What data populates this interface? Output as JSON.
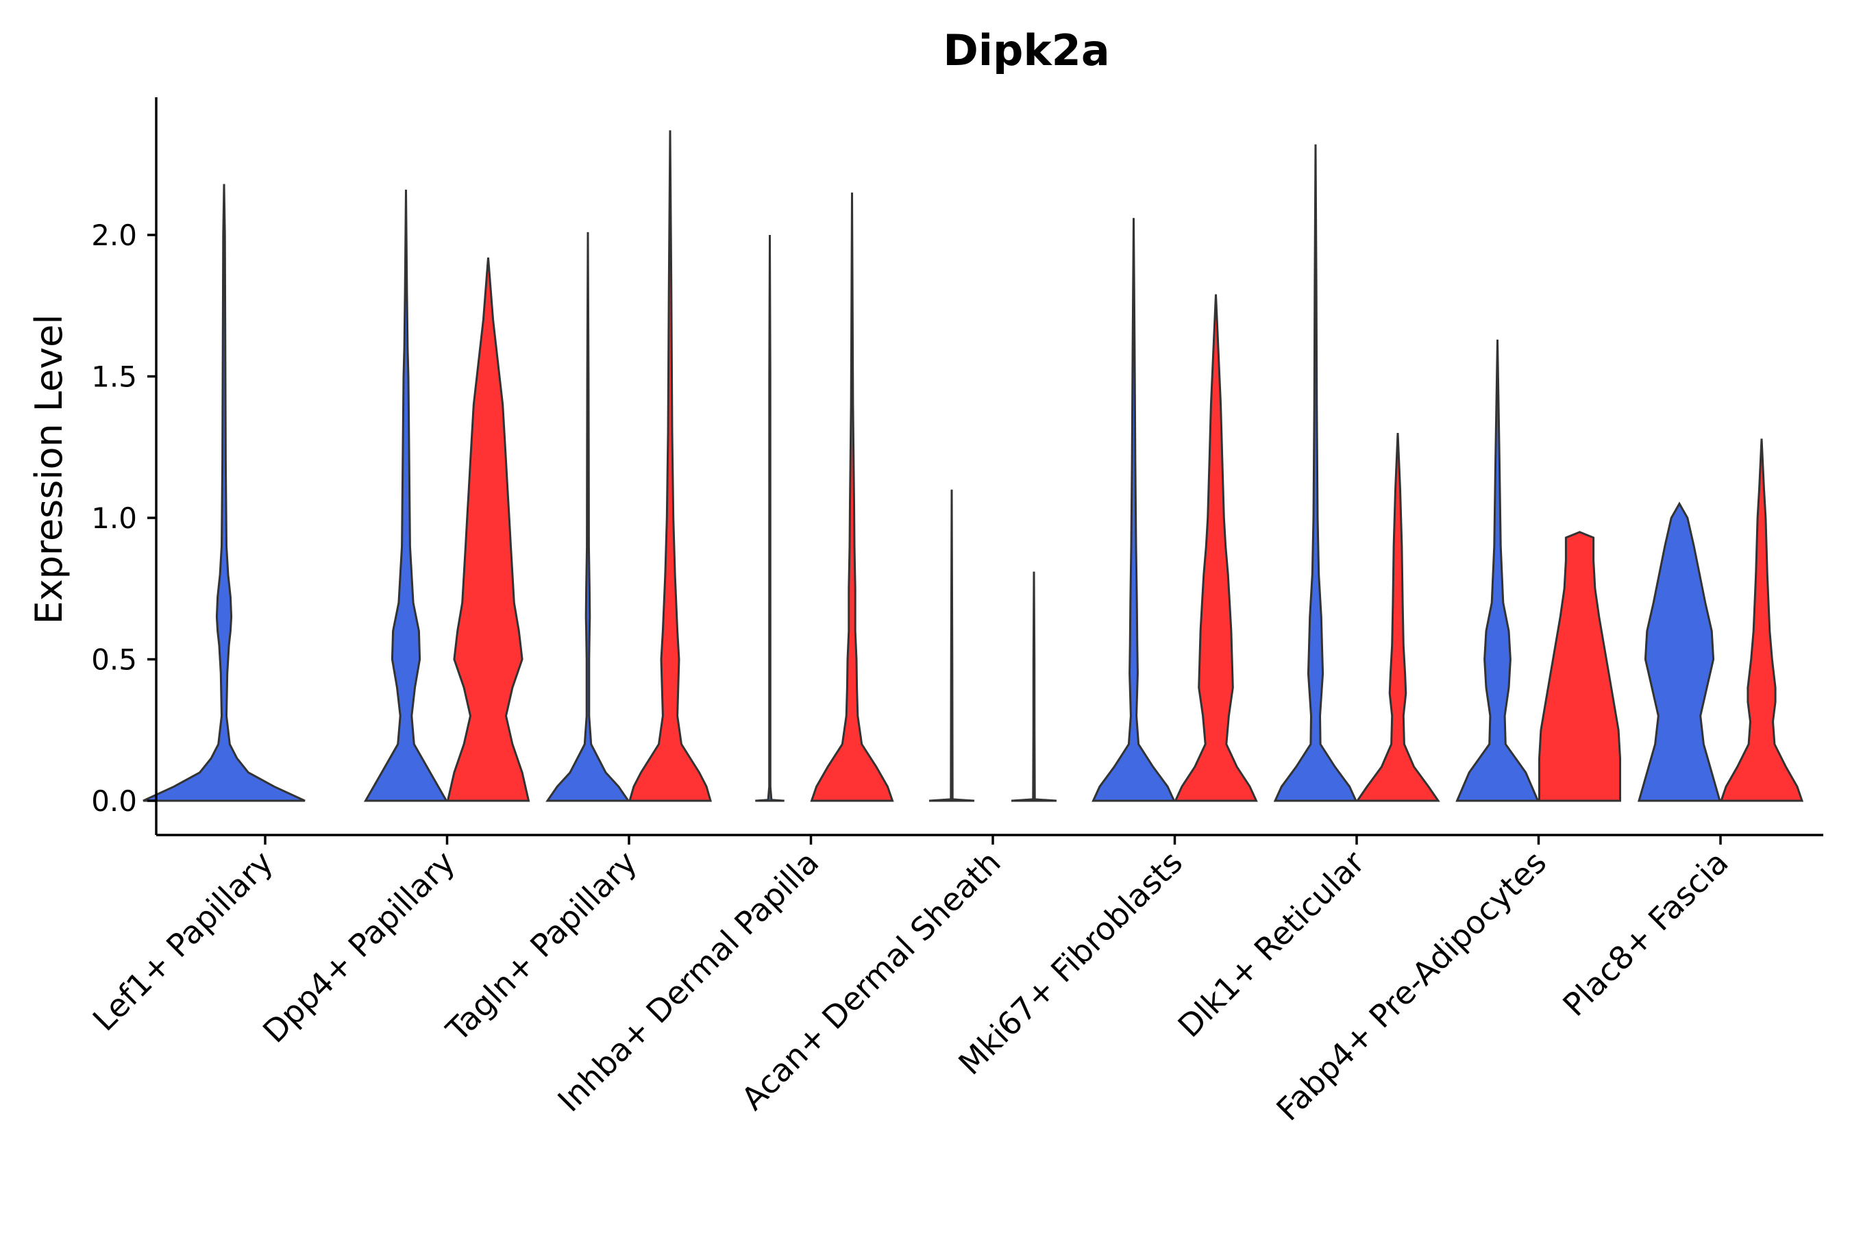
{
  "chart_data": {
    "type": "violin",
    "title": "Dipk2a",
    "xlabel": "",
    "ylabel": "Expression Level",
    "ylim": [
      -0.12,
      2.48
    ],
    "yticks": [
      "0.0",
      "0.5",
      "1.0",
      "1.5",
      "2.0"
    ],
    "ytick_values": [
      0.0,
      0.5,
      1.0,
      1.5,
      2.0
    ],
    "colors": {
      "group1": "#4169E1",
      "group2": "#FF3333"
    },
    "categories": [
      "Lef1+ Papillary",
      "Dpp4+ Papillary",
      "Tagln+ Papillary",
      "Inhba+ Dermal Papilla",
      "Acan+ Dermal Sheath",
      "Mki67+ Fibroblasts",
      "Dlk1+ Reticular",
      "Fabp4+ Pre-Adipocytes",
      "Plac8+ Fascia"
    ],
    "series": [
      {
        "name": "group1",
        "color": "#4169E1",
        "max_values": [
          2.18,
          2.16,
          2.01,
          2.0,
          1.1,
          2.06,
          2.32,
          1.63,
          1.05
        ],
        "profiles": [
          [
            [
              0,
              1
            ],
            [
              0.05,
              0.62
            ],
            [
              0.1,
              0.3
            ],
            [
              0.15,
              0.16
            ],
            [
              0.2,
              0.07
            ],
            [
              0.3,
              0.03
            ],
            [
              0.45,
              0.04
            ],
            [
              0.55,
              0.06
            ],
            [
              0.6,
              0.08
            ],
            [
              0.65,
              0.09
            ],
            [
              0.72,
              0.08
            ],
            [
              0.8,
              0.05
            ],
            [
              0.9,
              0.03
            ],
            [
              1.2,
              0.02
            ],
            [
              1.6,
              0.015
            ],
            [
              2.0,
              0.01
            ],
            [
              2.18,
              0
            ]
          ],
          [
            [
              0,
              0.5
            ],
            [
              0.1,
              0.3
            ],
            [
              0.2,
              0.1
            ],
            [
              0.3,
              0.07
            ],
            [
              0.4,
              0.11
            ],
            [
              0.5,
              0.17
            ],
            [
              0.6,
              0.16
            ],
            [
              0.7,
              0.09
            ],
            [
              0.9,
              0.05
            ],
            [
              1.2,
              0.04
            ],
            [
              1.5,
              0.03
            ],
            [
              1.6,
              0.02
            ],
            [
              1.8,
              0.012
            ],
            [
              2.16,
              0
            ]
          ],
          [
            [
              0,
              0.5
            ],
            [
              0.05,
              0.38
            ],
            [
              0.1,
              0.22
            ],
            [
              0.2,
              0.04
            ],
            [
              0.3,
              0.015
            ],
            [
              0.5,
              0.015
            ],
            [
              0.6,
              0.02
            ],
            [
              0.65,
              0.024
            ],
            [
              0.75,
              0.02
            ],
            [
              0.9,
              0.012
            ],
            [
              1.2,
              0.01
            ],
            [
              1.5,
              0.008
            ],
            [
              2.01,
              0
            ]
          ],
          [
            [
              0,
              0.18
            ],
            [
              0.003,
              0.02
            ],
            [
              0.05,
              0.007
            ],
            [
              0.5,
              0.007
            ],
            [
              1.5,
              0.006
            ],
            [
              2.0,
              0
            ]
          ],
          [
            [
              0,
              0.28
            ],
            [
              0.005,
              0.01
            ],
            [
              0.5,
              0.007
            ],
            [
              1.1,
              0
            ]
          ],
          [
            [
              0,
              0.5
            ],
            [
              0.05,
              0.42
            ],
            [
              0.12,
              0.24
            ],
            [
              0.2,
              0.06
            ],
            [
              0.3,
              0.035
            ],
            [
              0.45,
              0.05
            ],
            [
              0.55,
              0.045
            ],
            [
              0.7,
              0.04
            ],
            [
              0.9,
              0.03
            ],
            [
              1.2,
              0.02
            ],
            [
              1.6,
              0.012
            ],
            [
              2.06,
              0
            ]
          ],
          [
            [
              0,
              0.5
            ],
            [
              0.05,
              0.42
            ],
            [
              0.12,
              0.24
            ],
            [
              0.2,
              0.06
            ],
            [
              0.3,
              0.055
            ],
            [
              0.45,
              0.09
            ],
            [
              0.55,
              0.08
            ],
            [
              0.65,
              0.07
            ],
            [
              0.8,
              0.04
            ],
            [
              1.0,
              0.025
            ],
            [
              1.4,
              0.015
            ],
            [
              1.8,
              0.01
            ],
            [
              2.32,
              0
            ]
          ],
          [
            [
              0,
              0.5
            ],
            [
              0.1,
              0.35
            ],
            [
              0.2,
              0.1
            ],
            [
              0.3,
              0.09
            ],
            [
              0.4,
              0.14
            ],
            [
              0.5,
              0.16
            ],
            [
              0.6,
              0.14
            ],
            [
              0.7,
              0.07
            ],
            [
              0.9,
              0.04
            ],
            [
              1.2,
              0.025
            ],
            [
              1.63,
              0
            ]
          ],
          [
            [
              0,
              0.5
            ],
            [
              0.1,
              0.4
            ],
            [
              0.2,
              0.3
            ],
            [
              0.3,
              0.26
            ],
            [
              0.4,
              0.34
            ],
            [
              0.5,
              0.42
            ],
            [
              0.6,
              0.4
            ],
            [
              0.7,
              0.32
            ],
            [
              0.8,
              0.25
            ],
            [
              0.9,
              0.18
            ],
            [
              1.0,
              0.1
            ],
            [
              1.05,
              0
            ]
          ]
        ]
      },
      {
        "name": "group2",
        "color": "#FF3333",
        "max_values": [
          null,
          1.92,
          2.37,
          2.15,
          0.81,
          1.79,
          1.3,
          0.95,
          1.28
        ],
        "profiles": [
          null,
          [
            [
              0,
              0.5
            ],
            [
              0.1,
              0.42
            ],
            [
              0.2,
              0.3
            ],
            [
              0.3,
              0.22
            ],
            [
              0.4,
              0.3
            ],
            [
              0.5,
              0.42
            ],
            [
              0.6,
              0.38
            ],
            [
              0.7,
              0.32
            ],
            [
              0.8,
              0.3
            ],
            [
              0.9,
              0.28
            ],
            [
              1.0,
              0.26
            ],
            [
              1.1,
              0.24
            ],
            [
              1.2,
              0.22
            ],
            [
              1.4,
              0.18
            ],
            [
              1.6,
              0.1
            ],
            [
              1.7,
              0.06
            ],
            [
              1.92,
              0
            ]
          ],
          [
            [
              0,
              0.5
            ],
            [
              0.05,
              0.45
            ],
            [
              0.1,
              0.36
            ],
            [
              0.2,
              0.14
            ],
            [
              0.3,
              0.09
            ],
            [
              0.4,
              0.1
            ],
            [
              0.5,
              0.11
            ],
            [
              0.6,
              0.09
            ],
            [
              0.8,
              0.06
            ],
            [
              1.0,
              0.04
            ],
            [
              1.3,
              0.025
            ],
            [
              1.8,
              0.015
            ],
            [
              2.37,
              0
            ]
          ],
          [
            [
              0,
              0.5
            ],
            [
              0.05,
              0.44
            ],
            [
              0.12,
              0.3
            ],
            [
              0.2,
              0.12
            ],
            [
              0.3,
              0.07
            ],
            [
              0.4,
              0.06
            ],
            [
              0.5,
              0.055
            ],
            [
              0.6,
              0.04
            ],
            [
              0.75,
              0.04
            ],
            [
              0.9,
              0.03
            ],
            [
              1.05,
              0.025
            ],
            [
              1.4,
              0.012
            ],
            [
              2.15,
              0
            ]
          ],
          [
            [
              0,
              0.28
            ],
            [
              0.005,
              0.01
            ],
            [
              0.25,
              0.007
            ],
            [
              0.5,
              0.006
            ],
            [
              0.81,
              0
            ]
          ],
          [
            [
              0,
              0.5
            ],
            [
              0.05,
              0.42
            ],
            [
              0.12,
              0.26
            ],
            [
              0.2,
              0.13
            ],
            [
              0.3,
              0.16
            ],
            [
              0.4,
              0.21
            ],
            [
              0.5,
              0.2
            ],
            [
              0.6,
              0.19
            ],
            [
              0.7,
              0.17
            ],
            [
              0.8,
              0.15
            ],
            [
              0.9,
              0.12
            ],
            [
              1.0,
              0.1
            ],
            [
              1.2,
              0.08
            ],
            [
              1.4,
              0.06
            ],
            [
              1.79,
              0
            ]
          ],
          [
            [
              0,
              0.5
            ],
            [
              0.05,
              0.38
            ],
            [
              0.12,
              0.2
            ],
            [
              0.2,
              0.08
            ],
            [
              0.3,
              0.07
            ],
            [
              0.38,
              0.1
            ],
            [
              0.45,
              0.09
            ],
            [
              0.55,
              0.07
            ],
            [
              0.7,
              0.06
            ],
            [
              0.9,
              0.05
            ],
            [
              1.1,
              0.03
            ],
            [
              1.3,
              0
            ]
          ],
          [
            [
              0,
              0.5
            ],
            [
              0.05,
              0.5
            ],
            [
              0.15,
              0.5
            ],
            [
              0.25,
              0.48
            ],
            [
              0.35,
              0.42
            ],
            [
              0.45,
              0.36
            ],
            [
              0.55,
              0.3
            ],
            [
              0.65,
              0.24
            ],
            [
              0.75,
              0.19
            ],
            [
              0.85,
              0.17
            ],
            [
              0.9,
              0.17
            ],
            [
              0.93,
              0.17
            ],
            [
              0.95,
              0
            ]
          ],
          [
            [
              0,
              0.5
            ],
            [
              0.05,
              0.44
            ],
            [
              0.12,
              0.3
            ],
            [
              0.2,
              0.16
            ],
            [
              0.28,
              0.14
            ],
            [
              0.35,
              0.17
            ],
            [
              0.4,
              0.17
            ],
            [
              0.5,
              0.13
            ],
            [
              0.6,
              0.1
            ],
            [
              0.8,
              0.07
            ],
            [
              1.0,
              0.05
            ],
            [
              1.1,
              0.03
            ],
            [
              1.28,
              0
            ]
          ]
        ]
      }
    ]
  }
}
